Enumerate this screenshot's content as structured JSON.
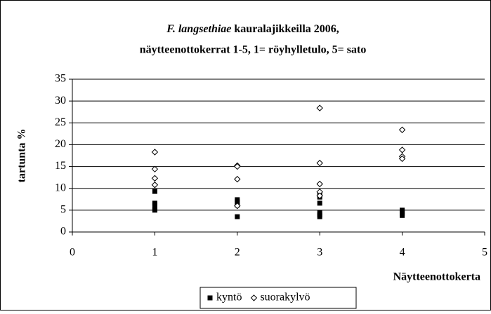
{
  "chart_data": {
    "type": "scatter",
    "title_italic": "F. langsethiae",
    "title": "kauralajikkeilla 2006,",
    "subtitle": "näytteenottokerrat 1-5, 1= röyhylletulo, 5= sato",
    "xlabel": "Näytteenottokerta",
    "ylabel": "tartunta %",
    "xlim": [
      0,
      5
    ],
    "xticks": [
      0,
      1,
      2,
      3,
      4,
      5
    ],
    "ylim": [
      0,
      35
    ],
    "yticks": [
      0,
      5,
      10,
      15,
      20,
      25,
      30,
      35
    ],
    "grid": true,
    "legend": "bottom",
    "series": [
      {
        "name": "kyntö",
        "color": "#000000",
        "marker": "square",
        "x": [
          1,
          1,
          1,
          1,
          1,
          2,
          2,
          2,
          2,
          3,
          3,
          3,
          3,
          3,
          3,
          4,
          4,
          4,
          4
        ],
        "values": [
          9.3,
          6.6,
          6.2,
          5.2,
          5.0,
          7.4,
          6.9,
          6.2,
          3.5,
          8.5,
          8.0,
          6.6,
          4.5,
          3.9,
          3.5,
          5.0,
          4.6,
          4.2,
          3.8
        ]
      },
      {
        "name": "suorakylvö",
        "color": "#000000",
        "marker": "diamond",
        "x": [
          1,
          1,
          1,
          1,
          2,
          2,
          2,
          2,
          3,
          3,
          3,
          3,
          3,
          4,
          4,
          4,
          4
        ],
        "values": [
          18.3,
          14.4,
          12.3,
          10.8,
          15.2,
          15.0,
          12.1,
          6.0,
          28.4,
          15.8,
          11.0,
          9.2,
          8.3,
          23.4,
          18.8,
          17.3,
          16.8
        ]
      }
    ]
  }
}
